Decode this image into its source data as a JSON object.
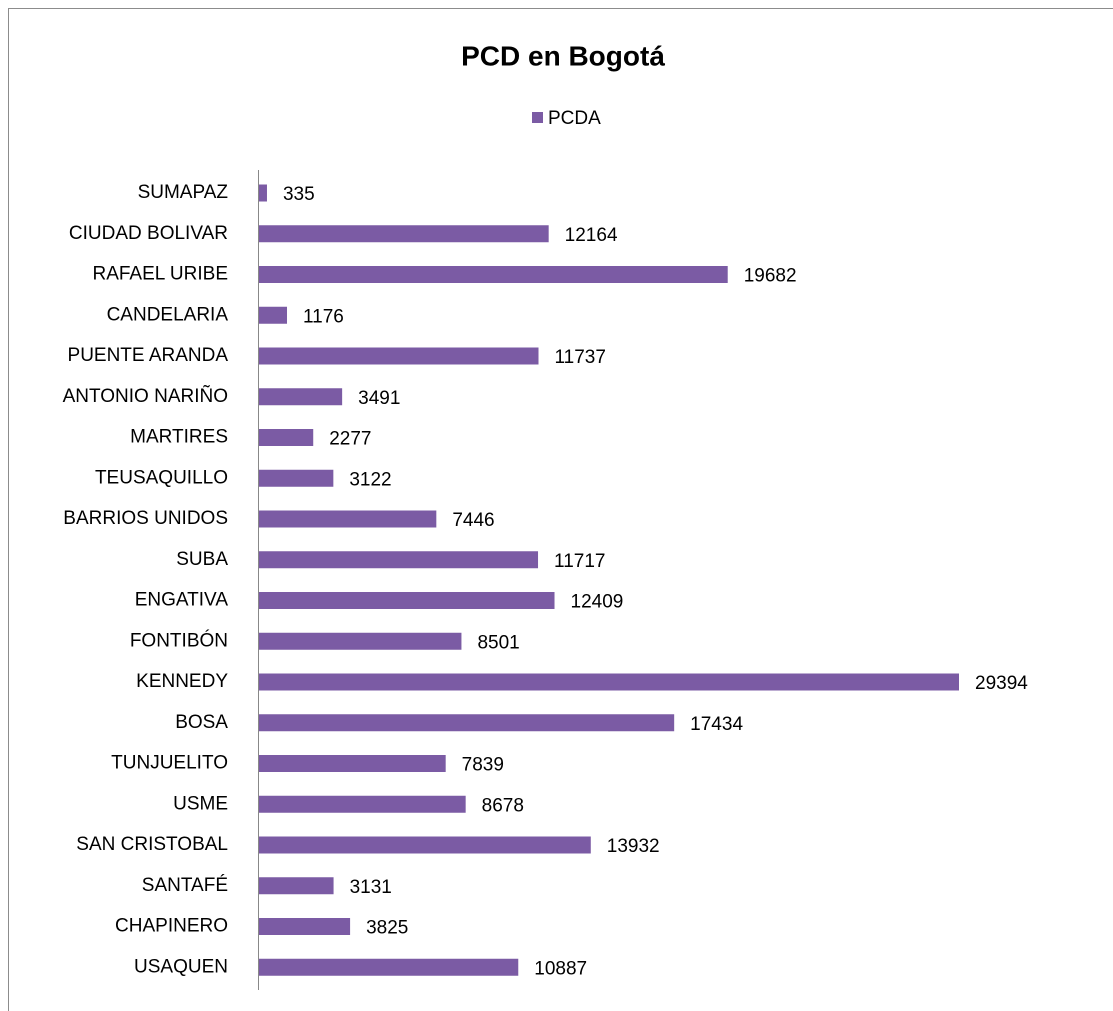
{
  "chart_data": {
    "type": "barh",
    "title": "PCD en Bogotá",
    "categories": [
      "SUMAPAZ",
      "CIUDAD BOLIVAR",
      "RAFAEL URIBE",
      "CANDELARIA",
      "PUENTE ARANDA",
      "ANTONIO NARIÑO",
      "MARTIRES",
      "TEUSAQUILLO",
      "BARRIOS UNIDOS",
      "SUBA",
      "ENGATIVA",
      "FONTIBÓN",
      "KENNEDY",
      "BOSA",
      "TUNJUELITO",
      "USME",
      "SAN CRISTOBAL",
      "SANTAFÉ",
      "CHAPINERO",
      "USAQUEN"
    ],
    "series": [
      {
        "name": "PCDA",
        "color": "#7b5ba4",
        "values": [
          335,
          12164,
          19682,
          1176,
          11737,
          3491,
          2277,
          3122,
          7446,
          11717,
          12409,
          8501,
          29394,
          17434,
          7839,
          8678,
          13932,
          3131,
          3825,
          10887
        ]
      }
    ]
  }
}
